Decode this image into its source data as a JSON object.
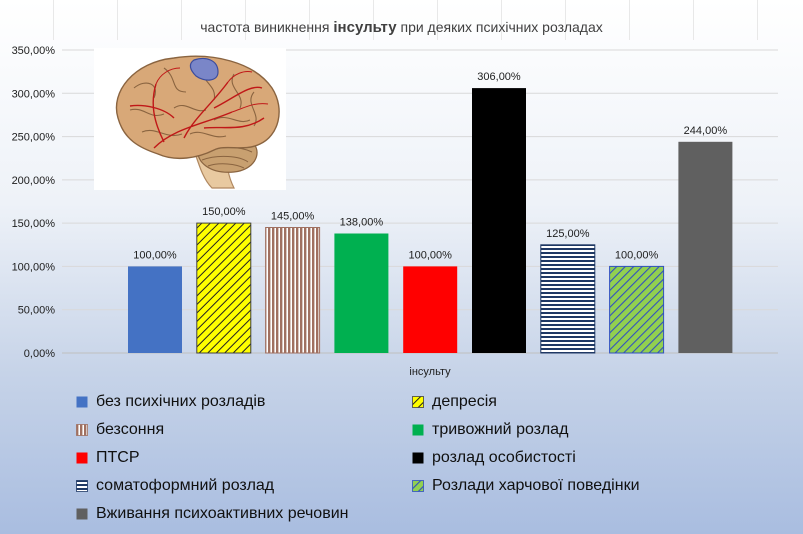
{
  "title": {
    "pre": "частота виникнення ",
    "emph": "інсульту",
    "post": " при деяких психічних розладах"
  },
  "chart_data": {
    "type": "bar",
    "categories": [
      "інсульту"
    ],
    "xlabel": "інсульту",
    "ylim": [
      0,
      350
    ],
    "yticks": [
      "0,00%",
      "50,00%",
      "100,00%",
      "150,00%",
      "200,00%",
      "250,00%",
      "300,00%",
      "350,00%"
    ],
    "grid": true,
    "legend_position": "bottom",
    "series": [
      {
        "name": "без психічних розладів",
        "values": [
          100
        ],
        "label": "100,00%",
        "color": "#4472c4",
        "pattern": "solid"
      },
      {
        "name": "депресія",
        "values": [
          150
        ],
        "label": "150,00%",
        "color": "#ffff00",
        "pattern": "diagonal"
      },
      {
        "name": "безсоння",
        "values": [
          145
        ],
        "label": "145,00%",
        "color": "#a07060",
        "pattern": "vertical"
      },
      {
        "name": "тривожний розлад",
        "values": [
          138
        ],
        "label": "138,00%",
        "color": "#00b050",
        "pattern": "solid"
      },
      {
        "name": "ПТСР",
        "values": [
          100
        ],
        "label": "100,00%",
        "color": "#ff0000",
        "pattern": "solid"
      },
      {
        "name": "розлад особистості",
        "values": [
          306
        ],
        "label": "306,00%",
        "color": "#000000",
        "pattern": "solid"
      },
      {
        "name": "соматоформний розлад",
        "values": [
          125
        ],
        "label": "125,00%",
        "color": "#1f3864",
        "pattern": "horizontal"
      },
      {
        "name": "Розлади харчової поведінки",
        "values": [
          100
        ],
        "label": "100,00%",
        "color": "#92d050",
        "pattern": "diagonal-blue"
      },
      {
        "name": "Вживання психоактивних речовин",
        "values": [
          244
        ],
        "label": "244,00%",
        "color": "#606060",
        "pattern": "solid"
      }
    ]
  },
  "image": {
    "icon": "brain-illustration"
  }
}
